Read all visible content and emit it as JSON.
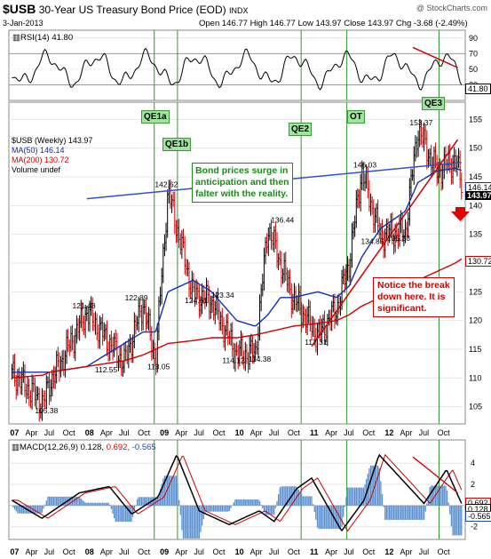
{
  "header": {
    "symbol": "$USB",
    "title": "30-Year US Treasury Bond Price (EOD)",
    "exchange": "INDX",
    "date": "3-Jan-2013",
    "ohlc": "Open 146.77  High 146.77  Low 143.97  Close 143.97  Chg -3.68 (-2.49%)",
    "credit": "@ StockCharts.com"
  },
  "rsi": {
    "label": "RSI(14) 41.80",
    "value": 41.8,
    "tag": "41.80",
    "axis_ticks": [
      90,
      70,
      50,
      30
    ],
    "overbought": 70,
    "oversold": 30
  },
  "qe_labels": [
    "QE1a",
    "QE1b",
    "QE2",
    "OT",
    "QE3"
  ],
  "price_legend": {
    "line1": "$USB (Weekly) 143.97",
    "line2": "MA(50) 146.14",
    "line3": "MA(200) 130.72",
    "line4": "Volume undef"
  },
  "price_tags": [
    "146.14",
    "143.97",
    "130.72"
  ],
  "annotations": {
    "green": [
      "Bond prices surge in",
      "anticipation and then",
      "falter with the reality."
    ],
    "red": [
      "Notice the break",
      "down here. It is",
      "significant."
    ]
  },
  "peak_labels": [
    "105.38",
    "121.48",
    "112.55",
    "122.89",
    "113.05",
    "142.62",
    "124.61",
    "123.34",
    "114.12",
    "114.38",
    "136.44",
    "117.31",
    "146.03",
    "134.85",
    "135.38",
    "153.37"
  ],
  "macd": {
    "label": "MACD(12,26,9)",
    "macd_value": "0.128,",
    "signal_value": "0.692,",
    "hist_value": "-0.565",
    "tags": [
      "0.692",
      "0.128",
      "-0.565"
    ],
    "axis_ticks": [
      "4",
      "2",
      "0",
      "-2"
    ]
  },
  "x_axis_labels": [
    "07",
    "Apr",
    "Jul",
    "Oct",
    "08",
    "Apr",
    "Jul",
    "Oct",
    "09",
    "Apr",
    "Jul",
    "Oct",
    "10",
    "Apr",
    "Jul",
    "Oct",
    "11",
    "Apr",
    "Jul",
    "Oct",
    "12",
    "Apr",
    "Jul",
    "Oct"
  ],
  "chart_data": {
    "type": "line",
    "title": "$USB 30-Year US Treasury Bond Price (EOD) INDX",
    "ylim": [
      102,
      158
    ],
    "y_ticks": [
      105,
      110,
      115,
      120,
      125,
      130,
      135,
      140,
      145,
      150,
      155
    ],
    "x": [
      "2007-01",
      "2007-06",
      "2007-07",
      "2008-01",
      "2008-07",
      "2008-10",
      "2008-12",
      "2009-02",
      "2009-06",
      "2009-09",
      "2010-01",
      "2010-04",
      "2010-06",
      "2010-08",
      "2010-10",
      "2011-02",
      "2011-05",
      "2011-07",
      "2011-09",
      "2011-12",
      "2012-04",
      "2012-06",
      "2012-09",
      "2012-12",
      "2013-01"
    ],
    "series": [
      {
        "name": "$USB (Weekly)",
        "values": [
          111,
          105.38,
          109,
          121.48,
          112.55,
          122.89,
          113.05,
          142.62,
          124.61,
          123.34,
          114.12,
          114.38,
          136.44,
          130,
          124,
          117.31,
          122,
          130,
          146.03,
          134.85,
          135.38,
          153.37,
          146,
          148,
          143.97
        ]
      },
      {
        "name": "MA(50)",
        "values": [
          111,
          111,
          111,
          112,
          116,
          118,
          118,
          125,
          127,
          125,
          120,
          119,
          121,
          124,
          124,
          125,
          124,
          126,
          131,
          136,
          139,
          144,
          146,
          146.5,
          146.14
        ]
      },
      {
        "name": "MA(200)",
        "values": [
          110,
          110.5,
          111,
          112,
          113,
          114,
          115,
          116,
          116.5,
          117,
          117,
          117.5,
          118,
          118.5,
          119,
          119.5,
          120,
          121,
          122.5,
          124,
          125.5,
          127,
          128.5,
          130,
          130.72
        ]
      }
    ],
    "trendlines": [
      "blue line 2007-2012",
      "red support line 2011-2012"
    ],
    "legend": "top-left",
    "grid": true
  }
}
